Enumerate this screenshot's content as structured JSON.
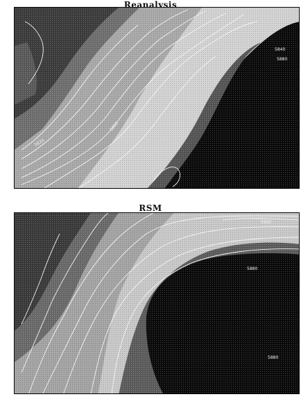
{
  "panels": [
    {
      "id": "reanalysis",
      "title": "Reanalysis",
      "contour_labels": [
        "5840",
        "5880",
        "5860",
        "5820"
      ]
    },
    {
      "id": "rsm",
      "title": "RSM",
      "contour_labels": [
        "5880",
        "5880",
        "5900"
      ]
    }
  ],
  "colors": {
    "dark": "#2e2e2e",
    "mid_dark": "#6f6f6f",
    "mid": "#a9a9a9",
    "light": "#d3d3d3",
    "black": "#0a0a0a",
    "contour": "#f4f4f4"
  }
}
